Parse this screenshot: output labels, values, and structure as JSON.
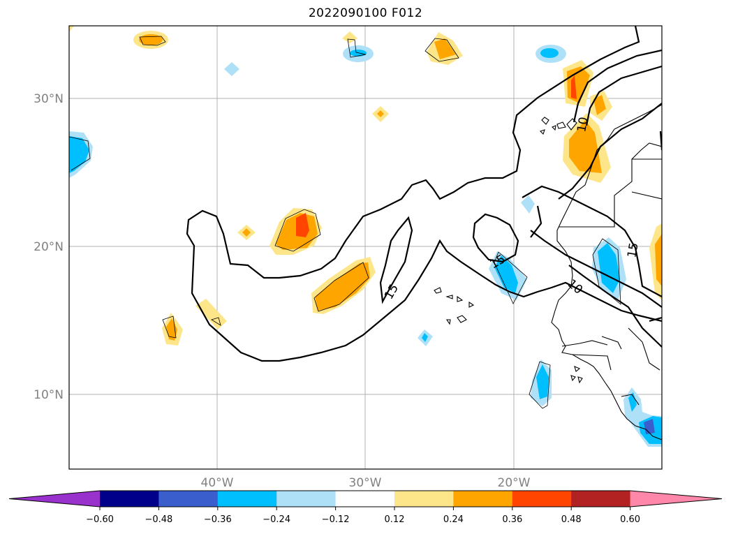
{
  "title": "2022090100 F012",
  "lat_labels": [
    "30°N",
    "20°N",
    "10°N"
  ],
  "lon_labels": [
    "40°W",
    "30°W",
    "20°W"
  ],
  "contour_labels": [
    "15",
    "15",
    "10",
    "15",
    "10"
  ],
  "colorbar": {
    "ticks": [
      "−0.60",
      "−0.48",
      "−0.36",
      "−0.24",
      "−0.12",
      "0.12",
      "0.24",
      "0.36",
      "0.48",
      "0.60"
    ],
    "colors": [
      "#9932cc",
      "#00008b",
      "#3a5fcd",
      "#00bfff",
      "#aee0f8",
      "#ffffff",
      "#fde68a",
      "#ffa500",
      "#ff4500",
      "#b22222",
      "#ff88aa"
    ]
  },
  "map_extent": {
    "lon_min": -50,
    "lon_max": -10,
    "lat_min": 5,
    "lat_max": 35
  }
}
